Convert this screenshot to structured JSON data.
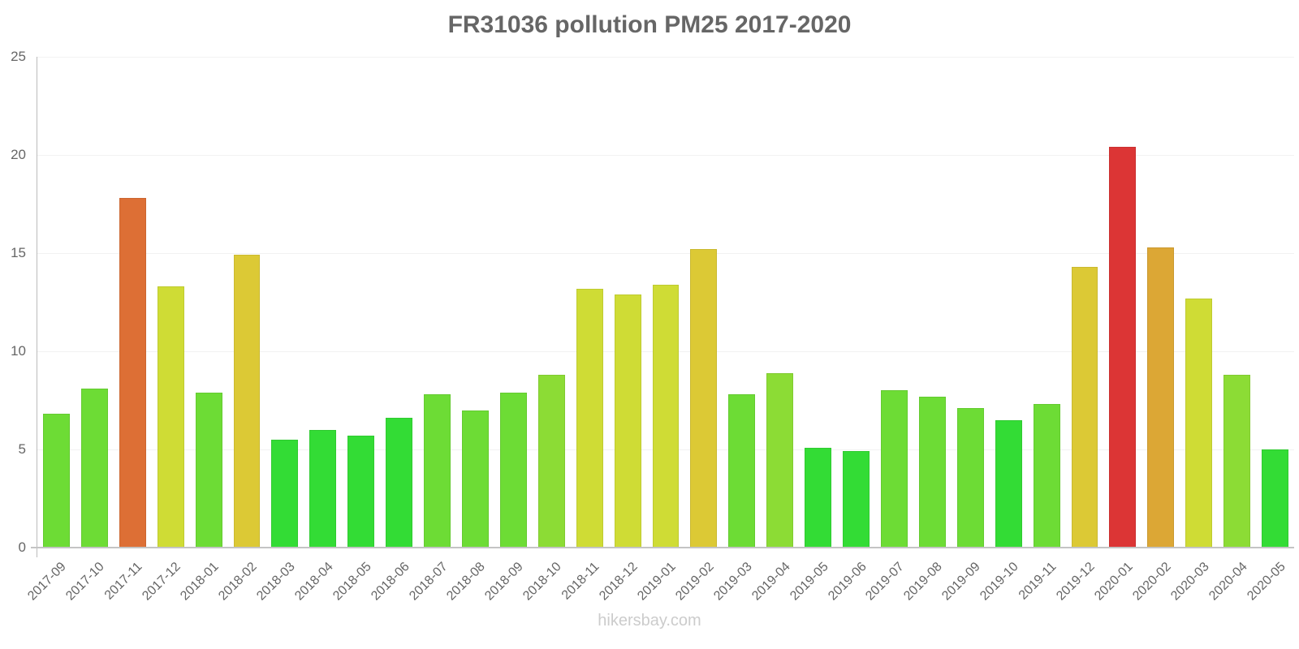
{
  "footer": "hikersbay.com",
  "chart_data": {
    "type": "bar",
    "title": "FR31036 pollution PM25 2017-2020",
    "xlabel": "",
    "ylabel": "",
    "ylim": [
      0,
      25
    ],
    "yticks": [
      0,
      5,
      10,
      15,
      20,
      25
    ],
    "grid": true,
    "legend": null,
    "categories": [
      "2017-09",
      "2017-10",
      "2017-11",
      "2017-12",
      "2018-01",
      "2018-02",
      "2018-03",
      "2018-04",
      "2018-05",
      "2018-06",
      "2018-07",
      "2018-08",
      "2018-09",
      "2018-10",
      "2018-11",
      "2018-12",
      "2019-01",
      "2019-02",
      "2019-03",
      "2019-04",
      "2019-05",
      "2019-06",
      "2019-07",
      "2019-08",
      "2019-09",
      "2019-10",
      "2019-11",
      "2019-12",
      "2020-01",
      "2020-02",
      "2020-03",
      "2020-04",
      "2020-05"
    ],
    "values": [
      6.8,
      8.1,
      17.8,
      13.3,
      7.9,
      14.9,
      5.5,
      6.0,
      5.7,
      6.6,
      7.8,
      7.0,
      7.9,
      8.8,
      13.2,
      12.9,
      13.4,
      15.2,
      7.8,
      8.9,
      5.1,
      4.9,
      8.0,
      7.7,
      7.1,
      6.5,
      7.3,
      14.3,
      20.4,
      15.3,
      12.7,
      8.8,
      5.0
    ],
    "colors": [
      "#6ddc35",
      "#6ddc35",
      "#dd6f35",
      "#cfdc35",
      "#6ddc35",
      "#dcc935",
      "#33dc35",
      "#33dc35",
      "#33dc35",
      "#33dc35",
      "#6ddc35",
      "#6ddc35",
      "#6ddc35",
      "#8cdc35",
      "#cfdc35",
      "#cfdc35",
      "#cfdc35",
      "#dcc935",
      "#6ddc35",
      "#8cdc35",
      "#33dc35",
      "#33dc35",
      "#6ddc35",
      "#6ddc35",
      "#6ddc35",
      "#33dc35",
      "#6ddc35",
      "#dcc935",
      "#dc3535",
      "#dca735",
      "#cfdc35",
      "#8cdc35",
      "#33dc35"
    ]
  }
}
